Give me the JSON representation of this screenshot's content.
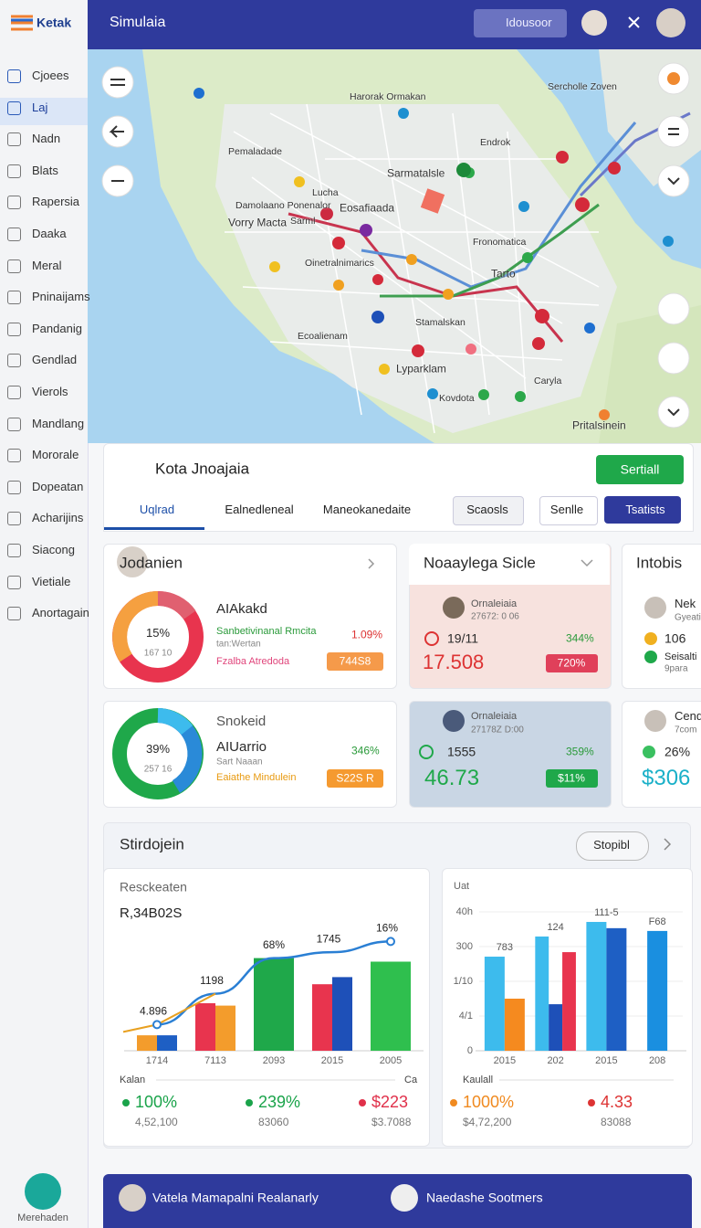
{
  "header": {
    "logo": "Ketak",
    "title": "Simulaia",
    "search": "Idousoor"
  },
  "sidebar": {
    "items": [
      "Cjoees",
      "Laj",
      "Nadn",
      "Blats",
      "Rapersia",
      "Daaka",
      "Meral",
      "Pninaijams",
      "Pandanig",
      "Gendlad",
      "Vierols",
      "Mandlang",
      "Mororale",
      "Dopeatan",
      "Acharijins",
      "Siacong",
      "Vietiale",
      "Anortagain"
    ],
    "footer": "Merehaden"
  },
  "map": {
    "labels": [
      "Harorak  Ormakan",
      "Endrok",
      "Sarmatalsle",
      "Pemaladade",
      "Lucha",
      "Eosafiaada",
      "Sarml",
      "Damolaano Ponenalor",
      "Vorry Macta",
      "Fronomatica",
      "Oinetralnimarics",
      "Tarto",
      "Stamalskan",
      "Ecoalienam",
      "Lyparklam",
      "Kovdota",
      "Caryla",
      "Pritalsinein",
      "Sercholle Zoven"
    ]
  },
  "profile": {
    "name": "Kota Jnoajaia",
    "button": "Sertiall",
    "tabs": [
      "Uqlrad",
      "Ealnedleneal",
      "Maneokanedaite"
    ],
    "buttons": [
      "Scaosls",
      "Senlle",
      "Tsatists"
    ]
  },
  "cards": [
    {
      "title": "Jodanien",
      "donut_label": "15%",
      "donut_sub": "167 10",
      "heading": "AIAkakd",
      "line1": "Sanbetivinanal Rmcita",
      "line1_value": "1.09%",
      "line2": "tan:Wertan",
      "line3": "Fzalba Atredoda",
      "badge": "744S8"
    },
    {
      "title": "Noaaylega Sicle",
      "name": "Ornaleiaia",
      "meta": "27672: 0 06",
      "stat": "19/11",
      "stat_pct": "344%",
      "big": "17.508",
      "badge": "720%"
    },
    {
      "title": "Intobis",
      "name": "Nek",
      "meta": "Gyeati",
      "stat": "106",
      "line": "Seisalti",
      "sub": "9para"
    },
    {
      "subtitle": "Snokeid",
      "donut_label": "39%",
      "donut_sub": "257 16",
      "heading": "AIUarrio",
      "line1_value": "346%",
      "line2": "Sart Naaan",
      "line3": "Eaiathe Mindulein",
      "badge": "S22S R"
    },
    {
      "name": "Ornaleiaia",
      "meta": "27178Z D:00",
      "stat": "1555",
      "stat_pct": "359%",
      "big": "46.73",
      "badge": "$11%"
    },
    {
      "name": "Cend",
      "meta": "7com",
      "stat": "26%",
      "big": "$306"
    }
  ],
  "section": {
    "title": "Stirdojein",
    "button": "Stopibl"
  },
  "chart_data": [
    {
      "type": "bar",
      "title": "Resckeaten",
      "subtitle": "R,34B02S",
      "categories": [
        "1714",
        "7113",
        "2093",
        "2015",
        "2005"
      ],
      "series": [
        {
          "colors": [
            "#f39c2c",
            "#e8344e",
            "#1fa84a",
            "#e8344e",
            "#2fbf4e"
          ],
          "values": [
            13,
            40,
            78,
            56,
            75
          ]
        },
        {
          "colors": [
            "#1e5fc4",
            "#f39c2c",
            "#1fa84a",
            "#1e50b8",
            "#2fbf4e"
          ],
          "values": [
            13,
            38,
            78,
            62,
            75
          ]
        }
      ],
      "line": {
        "color": "#2a7fd4",
        "values": [
          22,
          48,
          78,
          83,
          92
        ]
      },
      "annotations": [
        "4.896",
        "1198",
        "68%",
        "1745",
        "16%"
      ],
      "footer_left": "Kalan",
      "footer_right": "Ca",
      "stats": [
        {
          "value": "100%",
          "sub": "4,52,100"
        },
        {
          "value": "239%",
          "sub": "83060"
        },
        {
          "value": "$223",
          "sub": "$3.7088"
        }
      ]
    },
    {
      "type": "bar",
      "title": "Uat",
      "ylim": [
        0,
        400
      ],
      "yticks": [
        0,
        {
          "value": 100,
          "label": "4/1"
        },
        {
          "value": 200,
          "label": "1/10"
        },
        300,
        {
          "value": 400,
          "label": "40h"
        }
      ],
      "categories": [
        "2015",
        "202",
        "2015",
        "208"
      ],
      "series": [
        {
          "colors": [
            "#3dbbed",
            "#3dbbed",
            "#3dbbed",
            "#1a8fe0"
          ],
          "values": [
            271,
            329,
            371,
            null
          ]
        },
        {
          "colors": [
            "#f58a1f",
            "#1e50b8",
            "#1e5fc4",
            "#1a8fe0"
          ],
          "values": [
            150,
            134,
            353,
            345
          ]
        },
        {
          "colors": [
            "#e8344e",
            "#e8344e",
            "#e8344e",
            "#e8344e"
          ],
          "values": [
            null,
            284,
            null,
            null
          ]
        }
      ],
      "annotations": [
        "783",
        "124",
        "111-5",
        "F68"
      ],
      "footer_left": "Kaulall",
      "stats": [
        {
          "value": "1000%",
          "sub": "$4,72,200"
        },
        {
          "value": "4.33",
          "sub": "83088"
        }
      ]
    }
  ],
  "footer_bar": {
    "people": [
      "Vatela Mamapalni Realanarly",
      "Naedashe Sootmers"
    ]
  }
}
